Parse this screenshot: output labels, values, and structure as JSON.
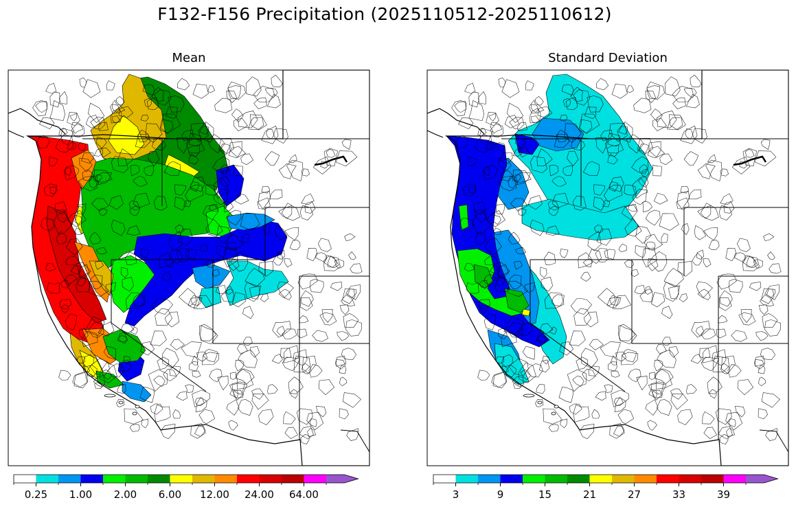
{
  "figure": {
    "title": "F132-F156 Precipitation (2025110512-2025110612)"
  },
  "panels": [
    {
      "title": "Mean",
      "colorbar": {
        "colors": [
          "#ffffff",
          "#00e0e0",
          "#0095f0",
          "#0000f0",
          "#00f000",
          "#00bb00",
          "#008a00",
          "#ffff00",
          "#e0b800",
          "#ff8a00",
          "#ff0000",
          "#d80000",
          "#bb0000",
          "#ff00ff",
          "#9955cc"
        ],
        "tick_labels": [
          "0.25",
          "1.00",
          "2.00",
          "6.00",
          "12.00",
          "24.00",
          "64.00"
        ],
        "extend": "max"
      }
    },
    {
      "title": "Standard Deviation",
      "colorbar": {
        "colors": [
          "#ffffff",
          "#00e0e0",
          "#0095f0",
          "#0000f0",
          "#00f000",
          "#00bb00",
          "#008a00",
          "#ffff00",
          "#e0b800",
          "#ff8a00",
          "#ff0000",
          "#d80000",
          "#bb0000",
          "#ff00ff",
          "#9955cc"
        ],
        "tick_labels": [
          "3",
          "9",
          "15",
          "21",
          "27",
          "33",
          "39"
        ],
        "extend": "max"
      }
    }
  ],
  "map": {
    "region": "Western United States river basins",
    "mean_regions": [
      {
        "name": "coast",
        "color": "#ff0000"
      },
      {
        "name": "coast-dark",
        "color": "#d80000"
      },
      {
        "name": "inland-orange",
        "color": "#ff8a00"
      },
      {
        "name": "gold-belt",
        "color": "#e0b800"
      },
      {
        "name": "yellow-belt",
        "color": "#ffff00"
      },
      {
        "name": "idaho-green",
        "color": "#00bb00"
      },
      {
        "name": "canada-green",
        "color": "#008a00"
      },
      {
        "name": "bright-green",
        "color": "#00f000"
      },
      {
        "name": "blue-band",
        "color": "#0000f0"
      },
      {
        "name": "lightblue",
        "color": "#0095f0"
      },
      {
        "name": "cyan",
        "color": "#00e0e0"
      }
    ],
    "std_regions": [
      {
        "name": "canada-cyan",
        "color": "#00e0e0"
      },
      {
        "name": "interior-cyan",
        "color": "#00e0e0"
      },
      {
        "name": "lightblue-band",
        "color": "#0095f0"
      },
      {
        "name": "coast-blue",
        "color": "#0000f0"
      },
      {
        "name": "nor-cal-green",
        "color": "#00f000"
      },
      {
        "name": "dark-green",
        "color": "#00bb00"
      },
      {
        "name": "yellow-spot",
        "color": "#ffff00"
      }
    ]
  }
}
